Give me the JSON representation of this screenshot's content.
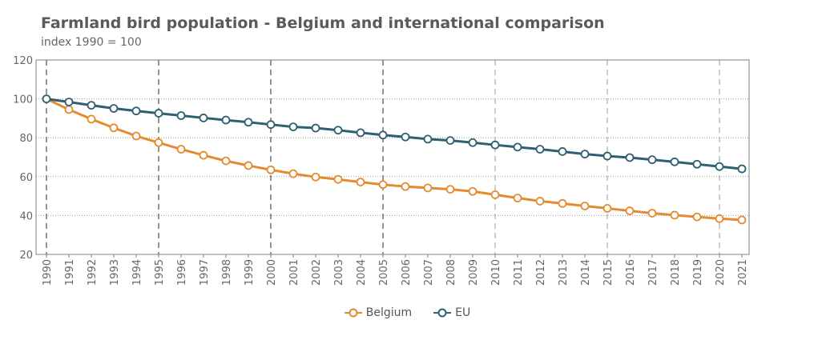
{
  "chart_data": {
    "type": "line",
    "title": "Farmland bird population - Belgium and international comparison",
    "subtitle": "index 1990 = 100",
    "xlabel": "",
    "ylabel": "",
    "x": [
      "1990",
      "1991",
      "1992",
      "1993",
      "1994",
      "1995",
      "1996",
      "1997",
      "1998",
      "1999",
      "2000",
      "2001",
      "2002",
      "2003",
      "2004",
      "2005",
      "2006",
      "2007",
      "2008",
      "2009",
      "2010",
      "2011",
      "2012",
      "2013",
      "2014",
      "2015",
      "2016",
      "2017",
      "2018",
      "2019",
      "2020",
      "2021"
    ],
    "ylim": [
      20,
      120
    ],
    "yticks": [
      "120",
      "100",
      "80",
      "60",
      "40",
      "20"
    ],
    "major_x_gridlines": [
      "1990",
      "1995",
      "2000",
      "2005"
    ],
    "minor_x_gridlines": [
      "2010",
      "2015",
      "2020"
    ],
    "legend_position": "bottom-center",
    "series": [
      {
        "name": "Belgium",
        "color": "#e58a2e",
        "values": [
          100,
          94.5,
          89.6,
          85.1,
          80.9,
          77.5,
          74.1,
          71,
          68.1,
          65.7,
          63.5,
          61.5,
          59.8,
          58.6,
          57.2,
          55.9,
          54.9,
          54.2,
          53.5,
          52.4,
          50.7,
          49,
          47.4,
          46.2,
          44.9,
          43.7,
          42.4,
          41.2,
          40.2,
          39.3,
          38.4,
          37.7
        ]
      },
      {
        "name": "EU",
        "color": "#2e5f73",
        "values": [
          100,
          98.4,
          96.7,
          95.1,
          93.8,
          92.6,
          91.4,
          90.2,
          89.1,
          88,
          86.8,
          85.6,
          85,
          83.9,
          82.6,
          81.4,
          80.4,
          79.3,
          78.6,
          77.5,
          76.3,
          75.2,
          74.1,
          72.9,
          71.6,
          70.6,
          69.8,
          68.7,
          67.6,
          66.4,
          65.2,
          64
        ]
      }
    ]
  }
}
